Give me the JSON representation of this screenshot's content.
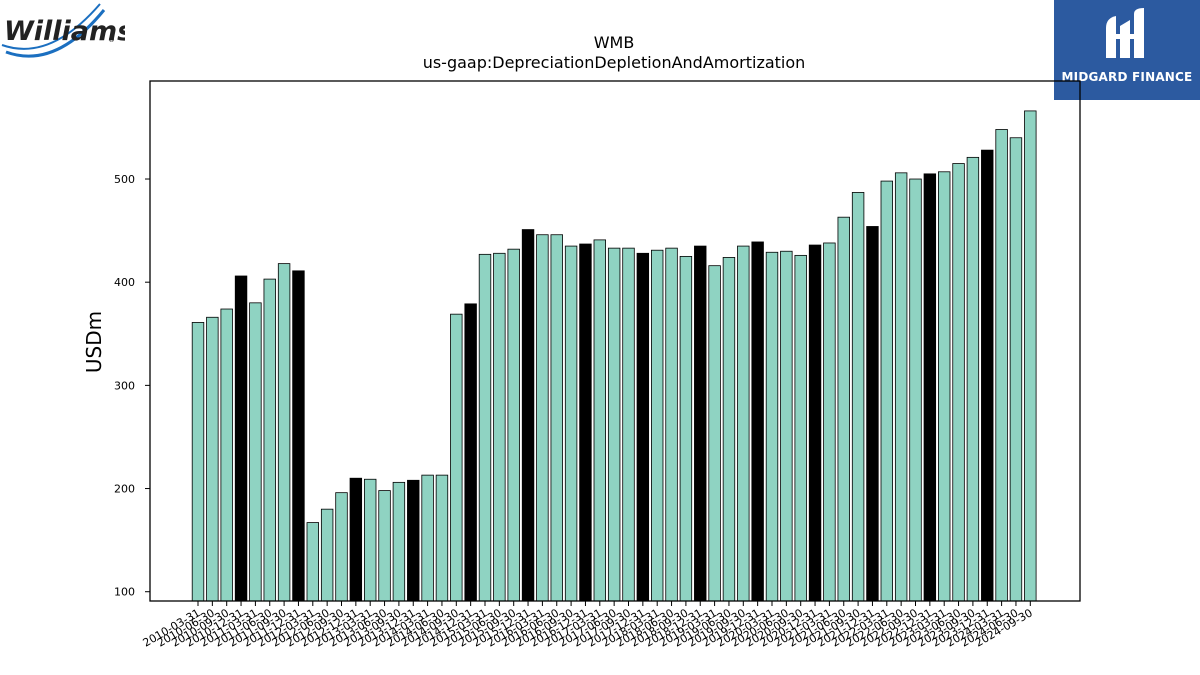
{
  "brand": {
    "left_logo_text": "Williams",
    "right_logo_text": "MIDGARD FINANCE",
    "colors": {
      "bar": "#8fd3c2",
      "highlight_bar": "#000000",
      "midgard_bg": "#2c5aa0",
      "williams_blue": "#1b6fc0"
    }
  },
  "chart_data": {
    "type": "bar",
    "title": "WMB",
    "subtitle": "us-gaap:DepreciationDepletionAndAmortization",
    "xlabel": "",
    "ylabel": "USDm",
    "ylim": [
      91,
      595
    ],
    "yticks": [
      100,
      200,
      300,
      400,
      500
    ],
    "grid": false,
    "legend": "none",
    "categories": [
      "2010-03-31",
      "2010-06-30",
      "2010-09-30",
      "2010-12-31",
      "2011-03-31",
      "2011-06-30",
      "2011-09-30",
      "2011-12-31",
      "2012-03-31",
      "2012-06-30",
      "2012-09-30",
      "2012-12-31",
      "2013-03-31",
      "2013-06-30",
      "2013-09-30",
      "2013-12-31",
      "2014-03-31",
      "2014-06-30",
      "2014-09-30",
      "2014-12-31",
      "2015-03-31",
      "2015-06-30",
      "2015-09-30",
      "2015-12-31",
      "2016-03-31",
      "2016-06-30",
      "2016-09-30",
      "2016-12-31",
      "2017-03-31",
      "2017-06-30",
      "2017-09-30",
      "2017-12-31",
      "2018-03-31",
      "2018-06-30",
      "2018-09-30",
      "2018-12-31",
      "2019-03-31",
      "2019-06-30",
      "2019-09-30",
      "2019-12-31",
      "2020-03-31",
      "2020-06-30",
      "2020-09-30",
      "2020-12-31",
      "2021-03-31",
      "2021-06-30",
      "2021-09-30",
      "2021-12-31",
      "2022-03-31",
      "2022-06-30",
      "2022-09-30",
      "2022-12-31",
      "2023-03-31",
      "2023-06-30",
      "2023-09-30",
      "2023-12-31",
      "2024-03-31",
      "2024-06-30",
      "2024-09-30"
    ],
    "values": [
      361,
      366,
      374,
      406,
      380,
      403,
      418,
      411,
      167,
      180,
      196,
      210,
      209,
      198,
      206,
      208,
      213,
      213,
      369,
      379,
      427,
      428,
      432,
      451,
      446,
      446,
      435,
      437,
      441,
      433,
      433,
      428,
      431,
      433,
      425,
      435,
      416,
      424,
      435,
      439,
      429,
      430,
      426,
      436,
      438,
      463,
      487,
      454,
      498,
      506,
      500,
      505,
      507,
      515,
      521,
      528,
      548,
      540,
      566
    ],
    "highlight_indices": [
      3,
      7,
      11,
      15,
      19,
      23,
      27,
      31,
      35,
      39,
      43,
      47,
      51,
      55
    ]
  }
}
